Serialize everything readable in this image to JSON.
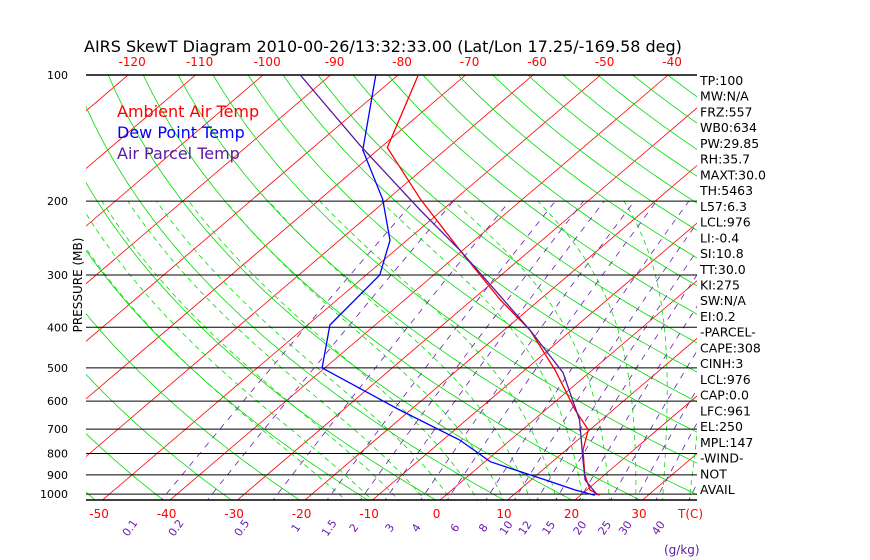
{
  "chart_data": {
    "type": "line",
    "subtype": "skew-t log-p",
    "title": "AIRS SkewT Diagram 2010-00-26/13:32:33.00 (Lat/Lon 17.25/-169.58 deg)",
    "ylabel": "PRESSURE (MB)",
    "xlabel": "T(C)",
    "mixing_ratio_label": "(g/kg)",
    "ylim": [
      1050,
      100
    ],
    "y_ticks": [
      100,
      200,
      300,
      400,
      500,
      600,
      700,
      800,
      900,
      1000
    ],
    "x_ticks_bottom": [
      -50,
      -40,
      -30,
      -20,
      -10,
      0,
      10,
      20,
      30
    ],
    "x_ticks_top": [
      -120,
      -110,
      -100,
      -90,
      -80,
      -70,
      -60,
      -50,
      -40
    ],
    "mixing_ratio_ticks": [
      "0.1",
      "0.2",
      "0.5",
      "1",
      "1.5",
      "2",
      "3",
      "4",
      "6",
      "8",
      "10",
      "12",
      "15",
      "20",
      "25",
      "30",
      "40"
    ],
    "legend": [
      "Ambient Air Temp",
      "Dew Point Temp",
      "Air Parcel Temp"
    ],
    "legend_placement": "top-left",
    "colors": {
      "temp": "#ff0000",
      "dewpoint": "#0000ff",
      "parcel": "#5a1aa0",
      "isotherm": "#ff0000",
      "dry_adiabat": "#00dd00",
      "moist_adiabat": "#00dd00",
      "mixing_ratio": "#6a1ab0",
      "axis": "#000000"
    },
    "series": [
      {
        "name": "Ambient Air Temp",
        "pressure": [
          100,
          149,
          198,
          262,
          344,
          406,
          506,
          630,
          703,
          785,
          900,
          978,
          1006
        ],
        "temperature": [
          -77.0,
          -69.0,
          -55.1,
          -40.4,
          -25.8,
          -16.2,
          -5.5,
          4.4,
          9.8,
          12.5,
          17.1,
          20.5,
          22.8
        ]
      },
      {
        "name": "Dew Point Temp",
        "pressure": [
          100,
          151,
          198,
          248,
          300,
          395,
          500,
          630,
          743,
          837,
          925,
          978,
          1006
        ],
        "temperature": [
          -83.3,
          -72.2,
          -60.7,
          -52.5,
          -48.0,
          -46.7,
          -40.4,
          -21.6,
          -7.5,
          0.8,
          12.1,
          18.3,
          22.1
        ]
      },
      {
        "name": "Air Parcel Temp",
        "pressure": [
          100,
          147,
          210,
          262,
          326,
          406,
          513,
          666,
          826,
          925,
          1006
        ],
        "temperature": [
          -94.5,
          -73.5,
          -53.3,
          -40.4,
          -28.3,
          -16.2,
          -3.9,
          6.8,
          14.1,
          18.0,
          22.5
        ]
      }
    ]
  },
  "indices": [
    "TP:100",
    "MW:N/A",
    "FRZ:557",
    "WB0:634",
    "PW:29.85",
    "RH:35.7",
    "MAXT:30.0",
    "TH:5463",
    "L57:6.3",
    "LCL:976",
    "LI:-0.4",
    "SI:10.8",
    "TT:30.0",
    "KI:275",
    "SW:N/A",
    "EI:0.2",
    "-PARCEL-",
    "CAPE:308",
    "CINH:3",
    "LCL:976",
    "CAP:0.0",
    "LFC:961",
    "EL:250",
    "MPL:147",
    "-WIND-",
    "NOT",
    "AVAIL"
  ]
}
